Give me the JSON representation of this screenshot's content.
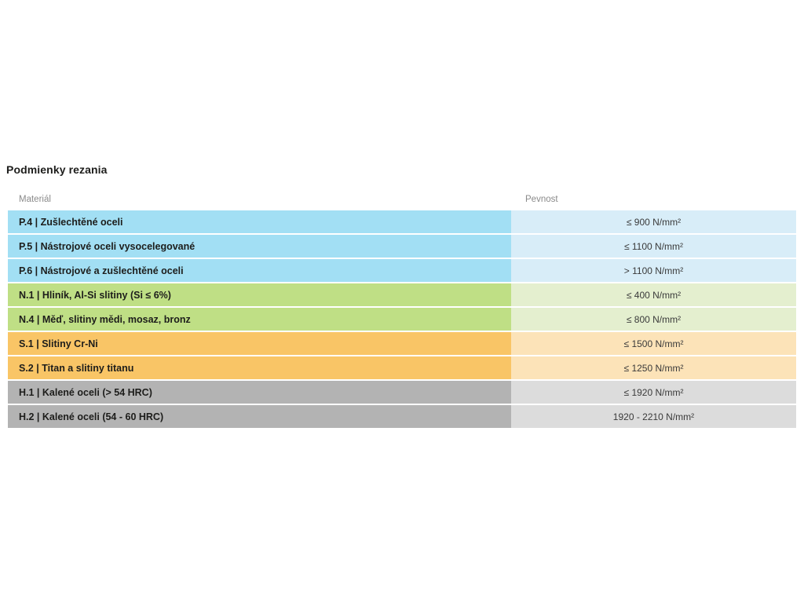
{
  "page": {
    "title": "Podmienky rezania"
  },
  "colors": {
    "p": {
      "cell": "#a2dff4",
      "value": "#d8edf8"
    },
    "n": {
      "cell": "#bfdf85",
      "value": "#e4efcf"
    },
    "s": {
      "cell": "#f9c566",
      "value": "#fce3b8"
    },
    "h": {
      "cell": "#b3b3b3",
      "value": "#dcdcdc"
    },
    "title_text": "#1d1d1b",
    "header_text": "#8a8a8a"
  },
  "table": {
    "columns": [
      {
        "label": "Materiál"
      },
      {
        "label": "Pevnost"
      }
    ],
    "rows": [
      {
        "group": "p",
        "material": "P.4 | Zušlechtěné oceli",
        "pevnost": "≤ 900 N/mm²"
      },
      {
        "group": "p",
        "material": "P.5 | Nástrojové oceli vysocelegované",
        "pevnost": "≤ 1100 N/mm²"
      },
      {
        "group": "p",
        "material": "P.6 | Nástrojové a zušlechtěné oceli",
        "pevnost": "> 1100 N/mm²"
      },
      {
        "group": "n",
        "material": "N.1 | Hliník, Al-Si slitiny (Si ≤ 6%)",
        "pevnost": "≤ 400 N/mm²"
      },
      {
        "group": "n",
        "material": "N.4 | Měď, slitiny mědi, mosaz, bronz",
        "pevnost": "≤ 800 N/mm²"
      },
      {
        "group": "s",
        "material": "S.1 | Slitiny Cr-Ni",
        "pevnost": "≤ 1500 N/mm²"
      },
      {
        "group": "s",
        "material": "S.2 | Titan a slitiny titanu",
        "pevnost": "≤ 1250 N/mm²"
      },
      {
        "group": "h",
        "material": "H.1 | Kalené oceli (> 54 HRC)",
        "pevnost": "≤ 1920 N/mm²"
      },
      {
        "group": "h",
        "material": "H.2 | Kalené oceli (54 - 60 HRC)",
        "pevnost": "1920 - 2210 N/mm²"
      }
    ]
  }
}
